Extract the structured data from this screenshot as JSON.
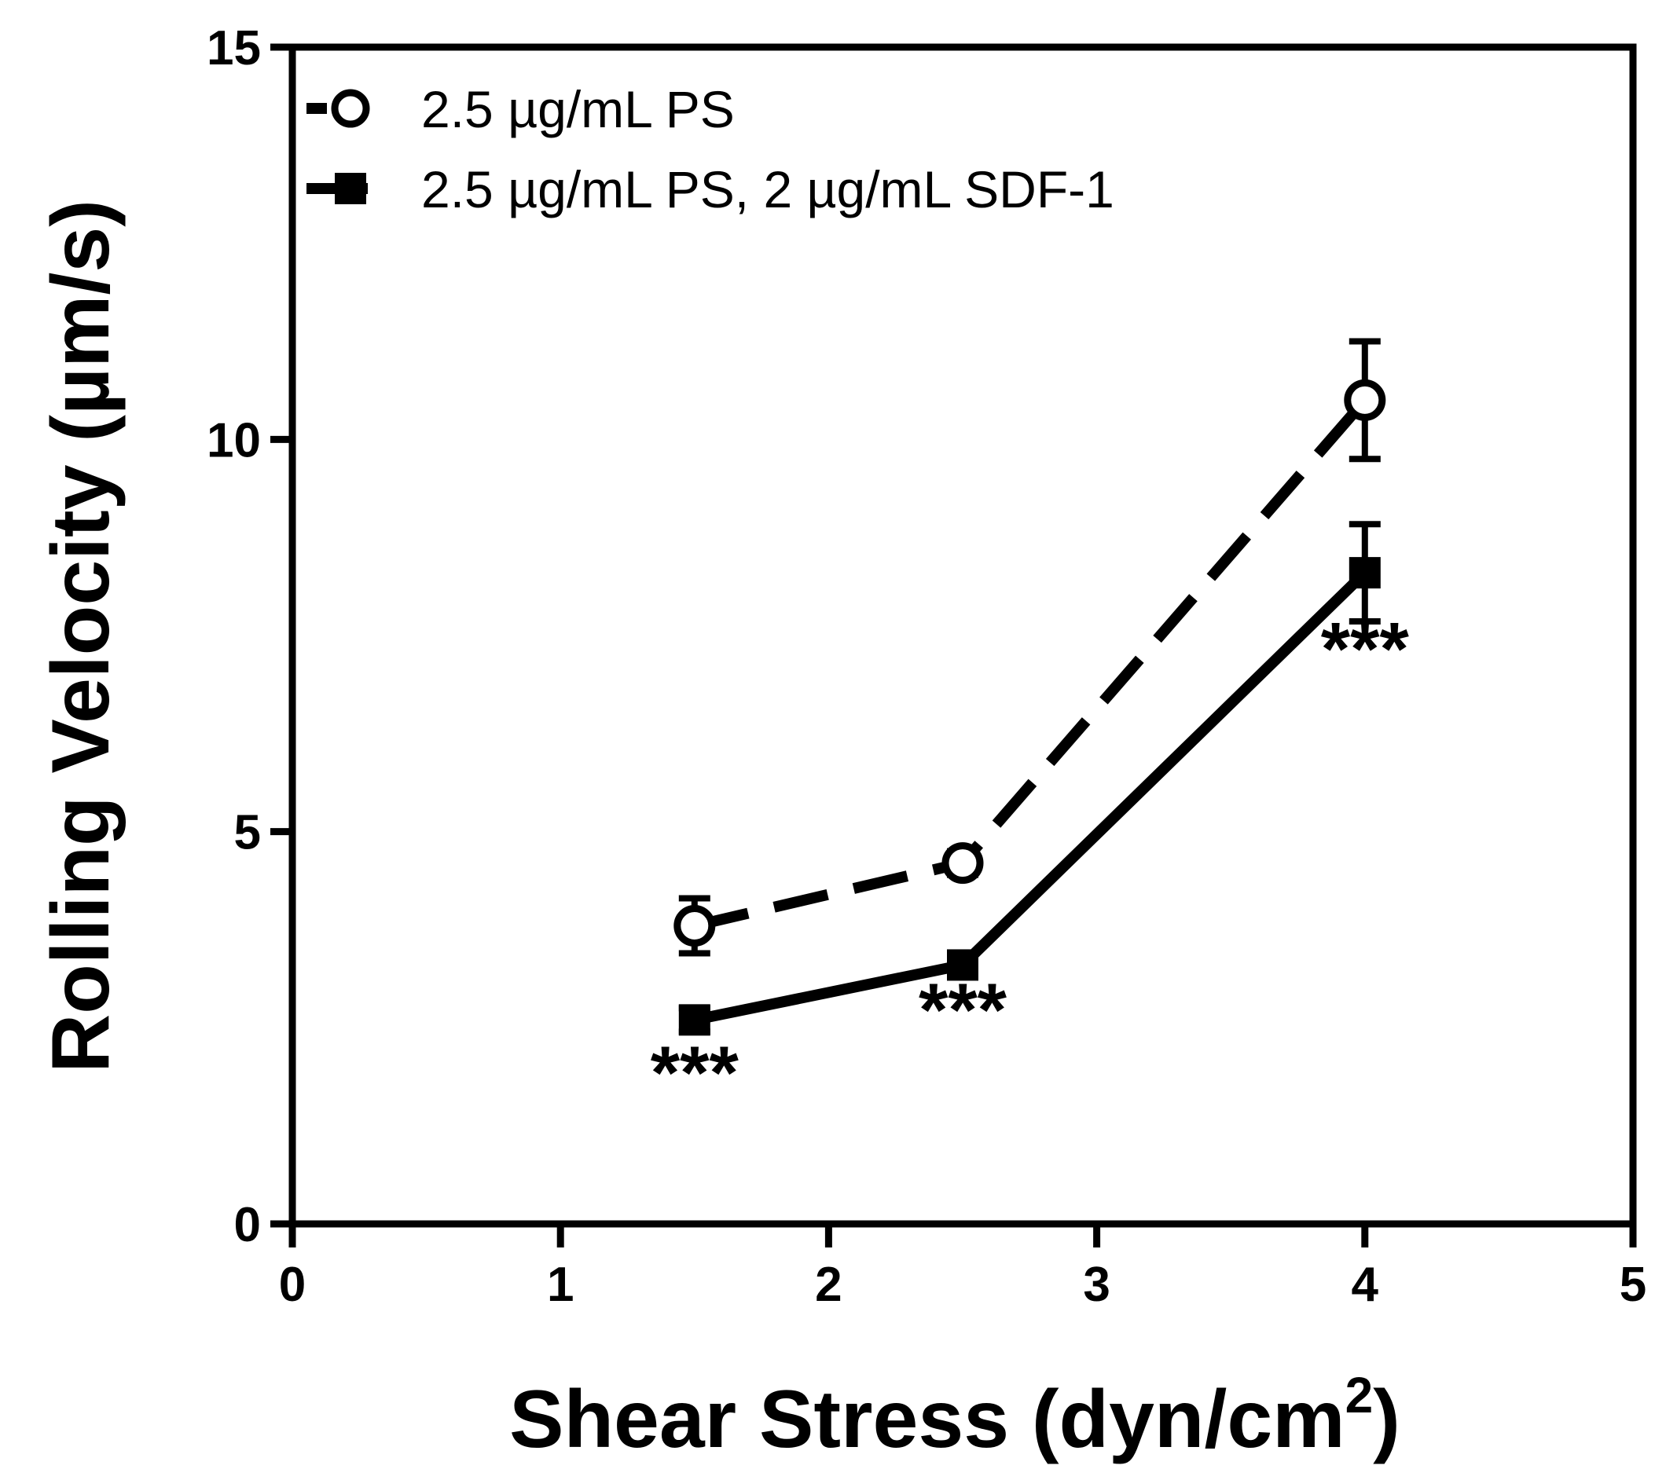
{
  "chart_data": {
    "type": "line",
    "title": "",
    "xlabel": "Shear Stress (dyn/cm",
    "xlabel_sup": "2",
    "xlabel_end": ")",
    "ylabel": "Rolling Velocity (µm/s)",
    "xlim": [
      0,
      5
    ],
    "ylim": [
      0,
      15
    ],
    "x_ticks": [
      0,
      1,
      2,
      3,
      4,
      5
    ],
    "x_tick_labels": [
      "0",
      "1",
      "2",
      "3",
      "4",
      "5"
    ],
    "y_ticks": [
      0,
      5,
      10,
      15
    ],
    "y_tick_labels": [
      "0",
      "5",
      "10",
      "15"
    ],
    "grid": false,
    "legend_position": "top-left",
    "series": [
      {
        "name": "2.5 µg/mL PS",
        "line_style": "dashed",
        "marker": "open-circle",
        "x": [
          1.5,
          2.5,
          4
        ],
        "y": [
          3.8,
          4.6,
          10.5
        ],
        "error": [
          0.35,
          0.15,
          0.75
        ]
      },
      {
        "name": "2.5 µg/mL PS, 2 µg/mL SDF-1",
        "line_style": "solid",
        "marker": "filled-square",
        "x": [
          1.5,
          2.5,
          4
        ],
        "y": [
          2.6,
          3.3,
          8.3
        ],
        "error": [
          0.15,
          0.1,
          0.62
        ]
      }
    ],
    "annotations": [
      {
        "text": "***",
        "x": 1.5,
        "y": 1.9
      },
      {
        "text": "***",
        "x": 2.5,
        "y": 2.7
      },
      {
        "text": "***",
        "x": 4.0,
        "y": 7.3
      }
    ]
  }
}
